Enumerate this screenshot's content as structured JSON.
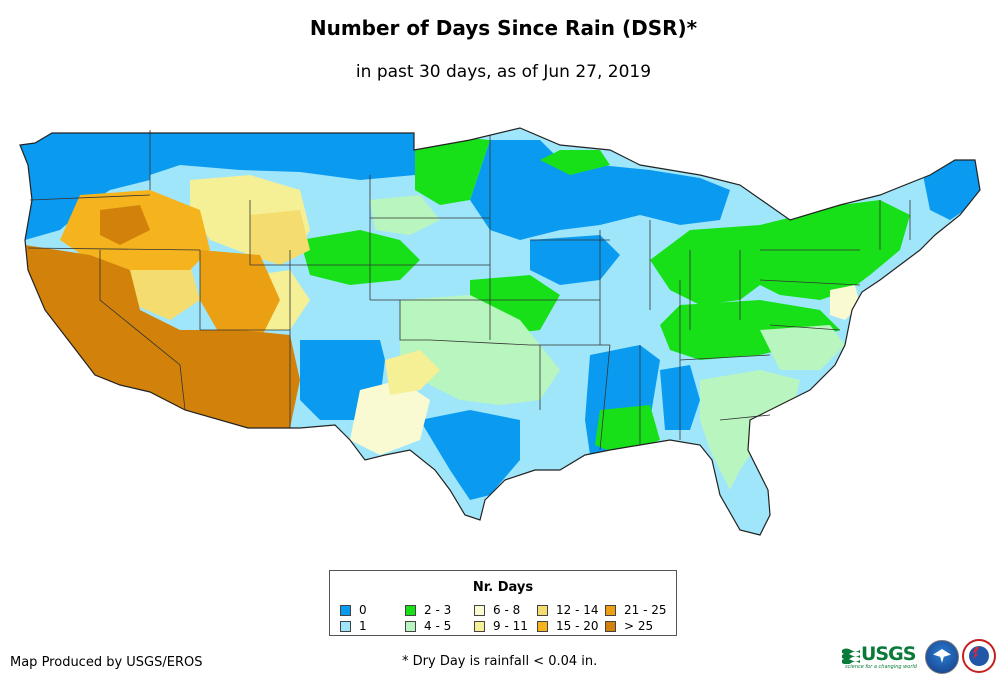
{
  "title": "Number of Days Since Rain (DSR)*",
  "subtitle": "in past 30 days, as of Jun 27, 2019",
  "legend": {
    "title": "Nr. Days",
    "items": [
      {
        "label": "0",
        "color": "#0a9bf0"
      },
      {
        "label": "1",
        "color": "#a0e6fa"
      },
      {
        "label": "2 - 3",
        "color": "#18e018"
      },
      {
        "label": "4 - 5",
        "color": "#b9f5be"
      },
      {
        "label": "6 - 8",
        "color": "#fafad2"
      },
      {
        "label": "9 - 11",
        "color": "#f5f096"
      },
      {
        "label": "12 - 14",
        "color": "#f5dc6e"
      },
      {
        "label": "15 - 20",
        "color": "#f5b41e"
      },
      {
        "label": "21 - 25",
        "color": "#eba014"
      },
      {
        "label": "> 25",
        "color": "#d2820a"
      }
    ]
  },
  "credit": "Map Produced by USGS/EROS",
  "footnote": "* Dry Day is rainfall < 0.04 in.",
  "logos": {
    "usgs": "USGS",
    "usgs_tagline": "science for a changing world"
  },
  "map_regions": [
    {
      "region": "Pacific Northwest coast",
      "class": "0"
    },
    {
      "region": "Northern Rockies / Montana",
      "class": "1"
    },
    {
      "region": "Northern Plains",
      "class": "0"
    },
    {
      "region": "Great Lakes / Upper Midwest",
      "class": "0"
    },
    {
      "region": "Ohio Valley / Appalachia",
      "class": "2 - 3"
    },
    {
      "region": "Northeast",
      "class": "2 - 3"
    },
    {
      "region": "Southern Plains",
      "class": "4 - 5"
    },
    {
      "region": "Texas Gulf Coast",
      "class": "0"
    },
    {
      "region": "Lower Mississippi Valley",
      "class": "0"
    },
    {
      "region": "Great Basin / Nevada",
      "class": "15 - 20"
    },
    {
      "region": "California / Arizona",
      "class": "> 25"
    },
    {
      "region": "New Mexico / West Texas",
      "class": "6 - 8"
    },
    {
      "region": "Southeast / Florida",
      "class": "4 - 5"
    }
  ]
}
